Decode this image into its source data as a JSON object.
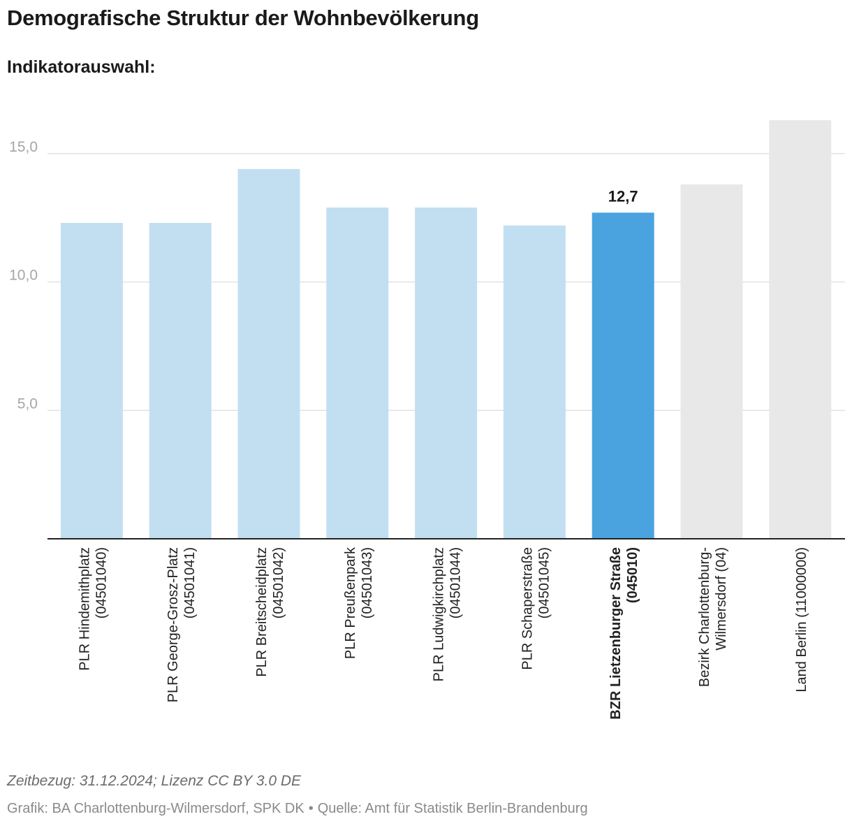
{
  "title": "Demografische Struktur der Wohnbevölkerung",
  "subtitle": "Indikatorauswahl:",
  "chart_data": {
    "type": "bar",
    "ylim": [
      0,
      16.3
    ],
    "yticks": [
      {
        "value": 5,
        "label": "5,0"
      },
      {
        "value": 10,
        "label": "10,0"
      },
      {
        "value": 15,
        "label": "15,0"
      }
    ],
    "xlabel": "",
    "ylabel": "",
    "grid": true,
    "categories": [
      [
        "PLR Hindemithplatz",
        "(04501040)"
      ],
      [
        "PLR George-Grosz-Platz",
        "(04501041)"
      ],
      [
        "PLR Breitscheidplatz",
        "(04501042)"
      ],
      [
        "PLR Preußenpark",
        "(04501043)"
      ],
      [
        "PLR Ludwigkirchplatz",
        "(04501044)"
      ],
      [
        "PLR Schaperstraße",
        "(04501045)"
      ],
      [
        "BZR Lietzenburger Straße",
        "(045010)"
      ],
      [
        "Bezirk Charlottenburg-",
        "Wilmersdorf (04)"
      ],
      [
        "Land Berlin (11000000)"
      ]
    ],
    "values": [
      12.3,
      12.3,
      14.4,
      12.9,
      12.9,
      12.2,
      12.7,
      13.8,
      16.3
    ],
    "highlight_index": 6,
    "highlight_label": "12,7",
    "bar_colors": [
      "#c2dff2",
      "#c2dff2",
      "#c2dff2",
      "#c2dff2",
      "#c2dff2",
      "#c2dff2",
      "#4aa3df",
      "#e8e8e8",
      "#e8e8e8"
    ],
    "grid_color": "#e2e2e2",
    "tick_color": "#a6a6a6",
    "axis_color": "#222222"
  },
  "footer": {
    "note": "Zeitbezug: 31.12.2024; Lizenz CC BY 3.0 DE",
    "credit": "Grafik: BA Charlottenburg-Wilmersdorf, SPK DK",
    "separator": "•",
    "source": "Quelle: Amt für Statistik Berlin-Brandenburg"
  }
}
